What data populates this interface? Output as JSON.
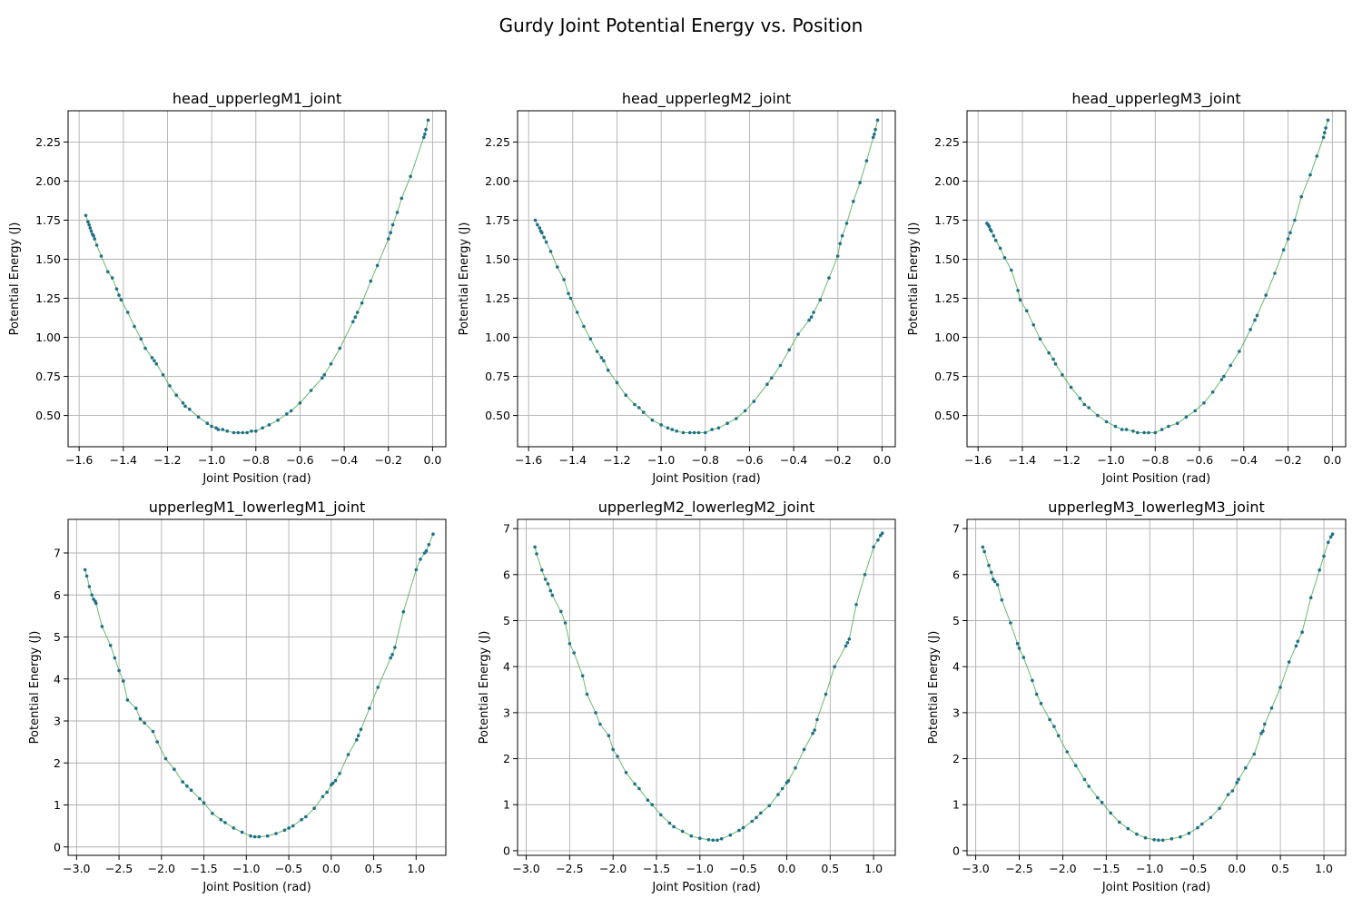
{
  "figure": {
    "title": "Gurdy Joint Potential Energy vs. Position"
  },
  "colors": {
    "points": "#1f6f8b",
    "line": "#4caf50",
    "grid": "#b0b0b0",
    "axes": "#000000"
  },
  "chart_data": [
    {
      "type": "scatter",
      "title": "head_upperlegM1_joint",
      "xlabel": "Joint Position (rad)",
      "ylabel": "Potential Energy (J)",
      "xlim": [
        -1.65,
        0.06
      ],
      "ylim": [
        0.3,
        2.45
      ],
      "xticks": [
        -1.6,
        -1.4,
        -1.2,
        -1.0,
        -0.8,
        -0.6,
        -0.4,
        -0.2,
        0.0
      ],
      "xticklabels": [
        "−1.6",
        "−1.4",
        "−1.2",
        "−1.0",
        "−0.8",
        "−0.6",
        "−0.4",
        "−0.2",
        "0.0"
      ],
      "yticks": [
        0.5,
        0.75,
        1.0,
        1.25,
        1.5,
        1.75,
        2.0,
        2.25
      ],
      "yticklabels": [
        "0.50",
        "0.75",
        "1.00",
        "1.25",
        "1.50",
        "1.75",
        "2.00",
        "2.25"
      ],
      "grid": true,
      "series": [
        {
          "x": [
            -1.57,
            -1.56,
            -1.555,
            -1.55,
            -1.545,
            -1.54,
            -1.535,
            -1.53,
            -1.52,
            -1.5,
            -1.47,
            -1.45,
            -1.43,
            -1.42,
            -1.41,
            -1.38,
            -1.35,
            -1.32,
            -1.3,
            -1.27,
            -1.26,
            -1.25,
            -1.22,
            -1.19,
            -1.16,
            -1.13,
            -1.12,
            -1.1,
            -1.06,
            -1.02,
            -1.0,
            -0.98,
            -0.97,
            -0.95,
            -0.93,
            -0.9,
            -0.88,
            -0.86,
            -0.84,
            -0.82,
            -0.8,
            -0.77,
            -0.74,
            -0.7,
            -0.66,
            -0.64,
            -0.6,
            -0.55,
            -0.5,
            -0.49,
            -0.46,
            -0.42,
            -0.36,
            -0.35,
            -0.34,
            -0.32,
            -0.28,
            -0.25,
            -0.2,
            -0.19,
            -0.18,
            -0.16,
            -0.14,
            -0.1,
            -0.04,
            -0.035,
            -0.03,
            -0.02
          ],
          "y": [
            1.78,
            1.74,
            1.72,
            1.7,
            1.68,
            1.66,
            1.65,
            1.63,
            1.59,
            1.52,
            1.42,
            1.38,
            1.31,
            1.27,
            1.24,
            1.16,
            1.07,
            0.99,
            0.93,
            0.87,
            0.85,
            0.83,
            0.76,
            0.69,
            0.63,
            0.58,
            0.56,
            0.54,
            0.49,
            0.45,
            0.43,
            0.42,
            0.41,
            0.41,
            0.4,
            0.39,
            0.39,
            0.39,
            0.39,
            0.4,
            0.4,
            0.42,
            0.44,
            0.47,
            0.51,
            0.53,
            0.58,
            0.66,
            0.74,
            0.76,
            0.83,
            0.93,
            1.1,
            1.13,
            1.16,
            1.22,
            1.36,
            1.46,
            1.63,
            1.67,
            1.72,
            1.8,
            1.89,
            2.03,
            2.28,
            2.3,
            2.33,
            2.39
          ]
        }
      ]
    },
    {
      "type": "scatter",
      "title": "head_upperlegM2_joint",
      "xlabel": "Joint Position (rad)",
      "ylabel": "Potential Energy (J)",
      "xlim": [
        -1.65,
        0.06
      ],
      "ylim": [
        0.3,
        2.45
      ],
      "xticks": [
        -1.6,
        -1.4,
        -1.2,
        -1.0,
        -0.8,
        -0.6,
        -0.4,
        -0.2,
        0.0
      ],
      "xticklabels": [
        "−1.6",
        "−1.4",
        "−1.2",
        "−1.0",
        "−0.8",
        "−0.6",
        "−0.4",
        "−0.2",
        "0.0"
      ],
      "yticks": [
        0.5,
        0.75,
        1.0,
        1.25,
        1.5,
        1.75,
        2.0,
        2.25
      ],
      "yticklabels": [
        "0.50",
        "0.75",
        "1.00",
        "1.25",
        "1.50",
        "1.75",
        "2.00",
        "2.25"
      ],
      "grid": true,
      "series": [
        {
          "x": [
            -1.57,
            -1.56,
            -1.55,
            -1.545,
            -1.54,
            -1.53,
            -1.52,
            -1.5,
            -1.47,
            -1.44,
            -1.42,
            -1.41,
            -1.38,
            -1.35,
            -1.32,
            -1.29,
            -1.27,
            -1.26,
            -1.24,
            -1.2,
            -1.16,
            -1.12,
            -1.1,
            -1.08,
            -1.04,
            -1.0,
            -0.97,
            -0.95,
            -0.93,
            -0.9,
            -0.87,
            -0.85,
            -0.83,
            -0.8,
            -0.77,
            -0.74,
            -0.7,
            -0.66,
            -0.62,
            -0.58,
            -0.52,
            -0.5,
            -0.46,
            -0.42,
            -0.38,
            -0.33,
            -0.32,
            -0.31,
            -0.28,
            -0.24,
            -0.2,
            -0.19,
            -0.18,
            -0.16,
            -0.13,
            -0.1,
            -0.07,
            -0.04,
            -0.035,
            -0.03,
            -0.02
          ],
          "y": [
            1.75,
            1.72,
            1.7,
            1.68,
            1.67,
            1.64,
            1.61,
            1.55,
            1.45,
            1.37,
            1.28,
            1.25,
            1.16,
            1.07,
            0.99,
            0.91,
            0.87,
            0.85,
            0.79,
            0.71,
            0.63,
            0.57,
            0.55,
            0.52,
            0.47,
            0.44,
            0.42,
            0.41,
            0.4,
            0.39,
            0.39,
            0.39,
            0.39,
            0.39,
            0.41,
            0.42,
            0.45,
            0.48,
            0.53,
            0.59,
            0.7,
            0.74,
            0.82,
            0.92,
            1.02,
            1.11,
            1.13,
            1.16,
            1.24,
            1.38,
            1.52,
            1.6,
            1.65,
            1.73,
            1.87,
            1.99,
            2.13,
            2.28,
            2.3,
            2.33,
            2.39
          ]
        }
      ]
    },
    {
      "type": "scatter",
      "title": "head_upperlegM3_joint",
      "xlabel": "Joint Position (rad)",
      "ylabel": "Potential Energy (J)",
      "xlim": [
        -1.65,
        0.06
      ],
      "ylim": [
        0.3,
        2.45
      ],
      "xticks": [
        -1.6,
        -1.4,
        -1.2,
        -1.0,
        -0.8,
        -0.6,
        -0.4,
        -0.2,
        0.0
      ],
      "xticklabels": [
        "−1.6",
        "−1.4",
        "−1.2",
        "−1.0",
        "−0.8",
        "−0.6",
        "−0.4",
        "−0.2",
        "0.0"
      ],
      "yticks": [
        0.5,
        0.75,
        1.0,
        1.25,
        1.5,
        1.75,
        2.0,
        2.25
      ],
      "yticklabels": [
        "0.50",
        "0.75",
        "1.00",
        "1.25",
        "1.50",
        "1.75",
        "2.00",
        "2.25"
      ],
      "grid": true,
      "series": [
        {
          "x": [
            -1.56,
            -1.555,
            -1.55,
            -1.545,
            -1.54,
            -1.53,
            -1.52,
            -1.5,
            -1.48,
            -1.45,
            -1.42,
            -1.41,
            -1.38,
            -1.35,
            -1.32,
            -1.28,
            -1.26,
            -1.25,
            -1.22,
            -1.18,
            -1.14,
            -1.12,
            -1.1,
            -1.06,
            -1.02,
            -0.98,
            -0.95,
            -0.93,
            -0.9,
            -0.88,
            -0.85,
            -0.83,
            -0.8,
            -0.77,
            -0.74,
            -0.7,
            -0.66,
            -0.62,
            -0.58,
            -0.54,
            -0.5,
            -0.49,
            -0.46,
            -0.42,
            -0.37,
            -0.35,
            -0.34,
            -0.3,
            -0.26,
            -0.22,
            -0.2,
            -0.19,
            -0.17,
            -0.14,
            -0.1,
            -0.07,
            -0.04,
            -0.035,
            -0.03,
            -0.02
          ],
          "y": [
            1.73,
            1.72,
            1.71,
            1.69,
            1.68,
            1.65,
            1.62,
            1.57,
            1.51,
            1.43,
            1.3,
            1.24,
            1.17,
            1.08,
            0.99,
            0.9,
            0.86,
            0.83,
            0.76,
            0.68,
            0.61,
            0.57,
            0.55,
            0.5,
            0.46,
            0.43,
            0.41,
            0.41,
            0.4,
            0.39,
            0.39,
            0.39,
            0.39,
            0.41,
            0.43,
            0.45,
            0.49,
            0.53,
            0.58,
            0.65,
            0.73,
            0.75,
            0.82,
            0.91,
            1.05,
            1.11,
            1.14,
            1.27,
            1.41,
            1.56,
            1.63,
            1.67,
            1.75,
            1.9,
            2.04,
            2.16,
            2.28,
            2.31,
            2.34,
            2.39
          ]
        }
      ]
    },
    {
      "type": "scatter",
      "title": "upperlegM1_lowerlegM1_joint",
      "xlabel": "Joint Position (rad)",
      "ylabel": "Potential Energy (J)",
      "xlim": [
        -3.1,
        1.35
      ],
      "ylim": [
        -0.2,
        7.8
      ],
      "xticks": [
        -3.0,
        -2.5,
        -2.0,
        -1.5,
        -1.0,
        -0.5,
        0.0,
        0.5,
        1.0
      ],
      "xticklabels": [
        "−3.0",
        "−2.5",
        "−2.0",
        "−1.5",
        "−1.0",
        "−0.5",
        "0.0",
        "0.5",
        "1.0"
      ],
      "yticks": [
        0,
        1,
        2,
        3,
        4,
        5,
        6,
        7
      ],
      "yticklabels": [
        "0",
        "1",
        "2",
        "3",
        "4",
        "5",
        "6",
        "7"
      ],
      "grid": true,
      "series": [
        {
          "x": [
            -2.9,
            -2.88,
            -2.85,
            -2.82,
            -2.8,
            -2.78,
            -2.77,
            -2.7,
            -2.6,
            -2.55,
            -2.5,
            -2.45,
            -2.4,
            -2.3,
            -2.25,
            -2.2,
            -2.1,
            -2.05,
            -1.95,
            -1.85,
            -1.75,
            -1.7,
            -1.65,
            -1.55,
            -1.5,
            -1.4,
            -1.3,
            -1.25,
            -1.15,
            -1.05,
            -0.95,
            -0.9,
            -0.85,
            -0.75,
            -0.65,
            -0.55,
            -0.5,
            -0.45,
            -0.35,
            -0.3,
            -0.2,
            -0.1,
            -0.05,
            0.0,
            0.02,
            0.05,
            0.1,
            0.2,
            0.3,
            0.32,
            0.35,
            0.45,
            0.55,
            0.7,
            0.72,
            0.75,
            0.85,
            1.0,
            1.05,
            1.1,
            1.12,
            1.15,
            1.2
          ],
          "y": [
            6.6,
            6.45,
            6.2,
            6.0,
            5.9,
            5.85,
            5.8,
            5.25,
            4.8,
            4.5,
            4.2,
            3.95,
            3.5,
            3.3,
            3.05,
            2.95,
            2.75,
            2.5,
            2.1,
            1.85,
            1.55,
            1.45,
            1.35,
            1.15,
            1.05,
            0.8,
            0.65,
            0.58,
            0.45,
            0.35,
            0.26,
            0.24,
            0.24,
            0.26,
            0.32,
            0.4,
            0.45,
            0.5,
            0.65,
            0.72,
            0.92,
            1.2,
            1.3,
            1.48,
            1.52,
            1.58,
            1.75,
            2.2,
            2.55,
            2.65,
            2.8,
            3.3,
            3.8,
            4.5,
            4.58,
            4.75,
            5.6,
            6.6,
            6.85,
            7.0,
            7.05,
            7.2,
            7.45
          ]
        }
      ]
    },
    {
      "type": "scatter",
      "title": "upperlegM2_lowerlegM2_joint",
      "xlabel": "Joint Position (rad)",
      "ylabel": "Potential Energy (J)",
      "xlim": [
        -3.1,
        1.25
      ],
      "ylim": [
        -0.1,
        7.2
      ],
      "xticks": [
        -3.0,
        -2.5,
        -2.0,
        -1.5,
        -1.0,
        -0.5,
        0.0,
        0.5,
        1.0
      ],
      "xticklabels": [
        "−3.0",
        "−2.5",
        "−2.0",
        "−1.5",
        "−1.0",
        "−0.5",
        "0.0",
        "0.5",
        "1.0"
      ],
      "yticks": [
        0,
        1,
        2,
        3,
        4,
        5,
        6,
        7
      ],
      "yticklabels": [
        "0",
        "1",
        "2",
        "3",
        "4",
        "5",
        "6",
        "7"
      ],
      "grid": true,
      "series": [
        {
          "x": [
            -2.9,
            -2.88,
            -2.82,
            -2.78,
            -2.75,
            -2.72,
            -2.7,
            -2.6,
            -2.55,
            -2.5,
            -2.45,
            -2.35,
            -2.3,
            -2.2,
            -2.15,
            -2.05,
            -2.0,
            -1.95,
            -1.85,
            -1.75,
            -1.7,
            -1.6,
            -1.55,
            -1.45,
            -1.35,
            -1.3,
            -1.2,
            -1.1,
            -1.0,
            -0.9,
            -0.85,
            -0.8,
            -0.75,
            -0.65,
            -0.55,
            -0.5,
            -0.4,
            -0.35,
            -0.3,
            -0.2,
            -0.1,
            -0.05,
            0.0,
            0.02,
            0.1,
            0.2,
            0.3,
            0.32,
            0.35,
            0.45,
            0.55,
            0.68,
            0.7,
            0.72,
            0.8,
            0.9,
            1.0,
            1.05,
            1.08,
            1.1
          ],
          "y": [
            6.6,
            6.45,
            6.1,
            5.9,
            5.8,
            5.65,
            5.55,
            5.2,
            4.95,
            4.5,
            4.3,
            3.8,
            3.4,
            3.0,
            2.75,
            2.5,
            2.2,
            2.05,
            1.7,
            1.45,
            1.35,
            1.1,
            1.0,
            0.78,
            0.6,
            0.52,
            0.42,
            0.32,
            0.27,
            0.24,
            0.23,
            0.23,
            0.26,
            0.34,
            0.44,
            0.5,
            0.64,
            0.72,
            0.82,
            0.98,
            1.22,
            1.35,
            1.48,
            1.52,
            1.8,
            2.2,
            2.55,
            2.62,
            2.85,
            3.4,
            4.0,
            4.45,
            4.52,
            4.6,
            5.35,
            6.0,
            6.6,
            6.75,
            6.85,
            6.9
          ]
        }
      ]
    },
    {
      "type": "scatter",
      "title": "upperlegM3_lowerlegM3_joint",
      "xlabel": "Joint Position (rad)",
      "ylabel": "Potential Energy (J)",
      "xlim": [
        -3.1,
        1.25
      ],
      "ylim": [
        -0.1,
        7.2
      ],
      "xticks": [
        -3.0,
        -2.5,
        -2.0,
        -1.5,
        -1.0,
        -0.5,
        0.0,
        0.5,
        1.0
      ],
      "xticklabels": [
        "−3.0",
        "−2.5",
        "−2.0",
        "−1.5",
        "−1.0",
        "−0.5",
        "0.0",
        "0.5",
        "1.0"
      ],
      "yticks": [
        0,
        1,
        2,
        3,
        4,
        5,
        6,
        7
      ],
      "yticklabels": [
        "0",
        "1",
        "2",
        "3",
        "4",
        "5",
        "6",
        "7"
      ],
      "grid": true,
      "series": [
        {
          "x": [
            -2.92,
            -2.9,
            -2.85,
            -2.82,
            -2.8,
            -2.78,
            -2.75,
            -2.7,
            -2.6,
            -2.52,
            -2.5,
            -2.45,
            -2.35,
            -2.3,
            -2.25,
            -2.15,
            -2.1,
            -2.05,
            -1.95,
            -1.85,
            -1.75,
            -1.7,
            -1.6,
            -1.55,
            -1.45,
            -1.35,
            -1.25,
            -1.15,
            -1.05,
            -0.95,
            -0.9,
            -0.85,
            -0.75,
            -0.65,
            -0.55,
            -0.45,
            -0.4,
            -0.3,
            -0.2,
            -0.1,
            -0.05,
            0.0,
            0.02,
            0.1,
            0.2,
            0.28,
            0.3,
            0.32,
            0.4,
            0.5,
            0.6,
            0.68,
            0.7,
            0.75,
            0.85,
            0.95,
            1.0,
            1.05,
            1.08,
            1.1
          ],
          "y": [
            6.6,
            6.5,
            6.2,
            6.05,
            5.9,
            5.85,
            5.78,
            5.45,
            4.95,
            4.5,
            4.4,
            4.2,
            3.7,
            3.4,
            3.2,
            2.85,
            2.7,
            2.5,
            2.15,
            1.85,
            1.55,
            1.4,
            1.15,
            1.05,
            0.82,
            0.62,
            0.48,
            0.36,
            0.28,
            0.24,
            0.23,
            0.23,
            0.26,
            0.3,
            0.38,
            0.5,
            0.58,
            0.72,
            0.92,
            1.22,
            1.3,
            1.48,
            1.55,
            1.8,
            2.1,
            2.55,
            2.6,
            2.75,
            3.1,
            3.55,
            4.1,
            4.45,
            4.55,
            4.75,
            5.5,
            6.1,
            6.4,
            6.7,
            6.82,
            6.88
          ]
        }
      ]
    }
  ]
}
